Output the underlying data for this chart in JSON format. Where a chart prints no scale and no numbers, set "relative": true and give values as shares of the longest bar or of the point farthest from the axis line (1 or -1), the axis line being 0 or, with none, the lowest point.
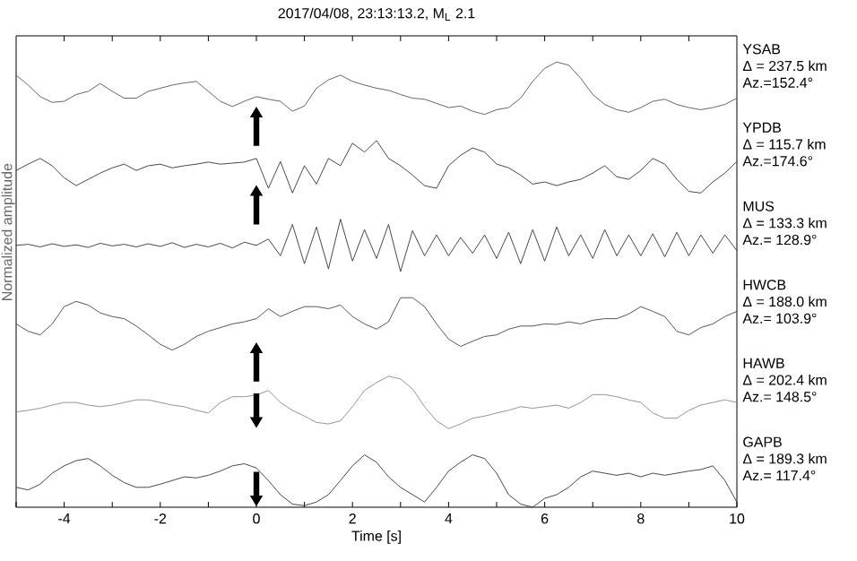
{
  "chart_data": [
    {
      "type": "line",
      "relative": true,
      "title": "2017/04/08, 23:13:13.2, M$_{L}$ 2.1",
      "xlim": [
        -5,
        10
      ],
      "tick_labels": false,
      "xticks": [
        {
          "value": -4,
          "label": null
        },
        {
          "value": -3,
          "label": null
        },
        {
          "value": -2,
          "label": null
        },
        {
          "value": -1,
          "label": null
        },
        {
          "value": 0,
          "label": null
        },
        {
          "value": 1,
          "label": null
        },
        {
          "value": 2,
          "label": null
        },
        {
          "value": 3,
          "label": null
        },
        {
          "value": 4,
          "label": null
        },
        {
          "value": 5,
          "label": null
        },
        {
          "value": 6,
          "label": null
        },
        {
          "value": 7,
          "label": null
        },
        {
          "value": 8,
          "label": null
        },
        {
          "value": 9,
          "label": null
        }
      ],
      "x": [
        -5,
        -4.75,
        -4.5,
        -4.25,
        -4,
        -3.75,
        -3.5,
        -3.25,
        -3,
        -2.75,
        -2.5,
        -2.25,
        -2,
        -1.75,
        -1.5,
        -1.25,
        -1,
        -0.75,
        -0.5,
        -0.25,
        0,
        0.25,
        0.5,
        0.75,
        1,
        1.25,
        1.5,
        1.75,
        2,
        2.25,
        2.5,
        2.75,
        3,
        3.25,
        3.5,
        3.75,
        4,
        4.25,
        4.5,
        4.75,
        5,
        5.25,
        5.5,
        5.75,
        6,
        6.25,
        6.5,
        6.75,
        7,
        7.25,
        7.5,
        7.75,
        8,
        8.25,
        8.5,
        8.75,
        9,
        9.25,
        9.5,
        9.75,
        10
      ],
      "series": [
        {
          "name": "YSAB",
          "color": "#555555",
          "values": [
            0.75,
            0.56,
            0.34,
            0.23,
            0.25,
            0.38,
            0.44,
            0.59,
            0.44,
            0.31,
            0.31,
            0.44,
            0.5,
            0.56,
            0.6,
            0.63,
            0.44,
            0.25,
            0.15,
            0.25,
            0.34,
            0.29,
            0.25,
            0.06,
            0.16,
            0.5,
            0.66,
            0.75,
            0.63,
            0.56,
            0.5,
            0.46,
            0.38,
            0.31,
            0.29,
            0.21,
            0.13,
            0.16,
            0.06,
            0,
            0.09,
            0.13,
            0.31,
            0.63,
            0.88,
            1,
            0.94,
            0.69,
            0.38,
            0.19,
            0.09,
            0.04,
            0.13,
            0.25,
            0.29,
            0.19,
            0.13,
            0.09,
            0.13,
            0.19,
            0.31
          ]
        }
      ],
      "annotations": [
        "Δ = 237.5 km",
        "Az.=152.4°"
      ]
    },
    {
      "type": "line",
      "relative": true,
      "xlim": [
        -5,
        10
      ],
      "tick_labels": false,
      "x": [
        -5,
        -4.75,
        -4.5,
        -4.25,
        -4,
        -3.75,
        -3.5,
        -3.25,
        -3,
        -2.75,
        -2.5,
        -2.25,
        -2,
        -1.75,
        -1.5,
        -1.25,
        -1,
        -0.75,
        -0.5,
        -0.25,
        0,
        0.25,
        0.5,
        0.75,
        1,
        1.25,
        1.5,
        1.75,
        2,
        2.25,
        2.5,
        2.75,
        3,
        3.25,
        3.5,
        3.75,
        4,
        4.25,
        4.5,
        4.75,
        5,
        5.25,
        5.5,
        5.75,
        6,
        6.25,
        6.5,
        6.75,
        7,
        7.25,
        7.5,
        7.75,
        8,
        8.25,
        8.5,
        8.75,
        9,
        9.25,
        9.5,
        9.75,
        10
      ],
      "series": [
        {
          "name": "YPDB",
          "color": "#333333",
          "values": [
            0.43,
            0.55,
            0.66,
            0.52,
            0.29,
            0.14,
            0.26,
            0.38,
            0.48,
            0.55,
            0.43,
            0.52,
            0.55,
            0.48,
            0.52,
            0.55,
            0.59,
            0.55,
            0.57,
            0.59,
            0.66,
            0.09,
            0.6,
            0,
            0.52,
            0.17,
            0.66,
            0.52,
            0.95,
            0.78,
            1,
            0.66,
            0.52,
            0.34,
            0.14,
            0.09,
            0.52,
            0.72,
            0.86,
            0.78,
            0.55,
            0.48,
            0.34,
            0.17,
            0.21,
            0.14,
            0.21,
            0.26,
            0.38,
            0.52,
            0.31,
            0.26,
            0.43,
            0.66,
            0.55,
            0.26,
            0.03,
            0,
            0.21,
            0.38,
            0.6
          ]
        }
      ],
      "annotations": [
        "Δ = 115.7 km",
        "Az.=174.6°"
      ]
    },
    {
      "type": "line",
      "relative": true,
      "xlim": [
        -5,
        10
      ],
      "tick_labels": false,
      "ylabel": "Normalized amplitude",
      "x": [
        -5,
        -4.75,
        -4.5,
        -4.25,
        -4,
        -3.75,
        -3.5,
        -3.25,
        -3,
        -2.75,
        -2.5,
        -2.25,
        -2,
        -1.75,
        -1.5,
        -1.25,
        -1,
        -0.75,
        -0.5,
        -0.25,
        0,
        0.25,
        0.5,
        0.75,
        1,
        1.25,
        1.5,
        1.75,
        2,
        2.25,
        2.5,
        2.75,
        3,
        3.25,
        3.5,
        3.75,
        4,
        4.25,
        4.5,
        4.75,
        5,
        5.25,
        5.5,
        5.75,
        6,
        6.25,
        6.5,
        6.75,
        7,
        7.25,
        7.5,
        7.75,
        8,
        8.25,
        8.5,
        8.75,
        9,
        9.25,
        9.5,
        9.75,
        10
      ],
      "series": [
        {
          "name": "MUS",
          "color": "#333333",
          "values": [
            0.5,
            0.52,
            0.47,
            0.53,
            0.48,
            0.51,
            0.46,
            0.54,
            0.49,
            0.52,
            0.47,
            0.53,
            0.48,
            0.55,
            0.46,
            0.52,
            0.47,
            0.54,
            0.45,
            0.56,
            0.5,
            0.62,
            0.3,
            0.9,
            0.15,
            0.85,
            0.05,
            1,
            0.2,
            0.8,
            0.25,
            0.9,
            0,
            0.78,
            0.3,
            0.7,
            0.3,
            0.65,
            0.35,
            0.7,
            0.25,
            0.75,
            0.15,
            0.8,
            0.2,
            0.85,
            0.3,
            0.7,
            0.25,
            0.8,
            0.3,
            0.7,
            0.3,
            0.72,
            0.28,
            0.75,
            0.3,
            0.7,
            0.35,
            0.7,
            0.4
          ]
        }
      ],
      "annotations": [
        "Δ = 133.3 km",
        "Az.= 128.9°"
      ]
    },
    {
      "type": "line",
      "relative": true,
      "xlim": [
        -5,
        10
      ],
      "tick_labels": false,
      "x": [
        -5,
        -4.75,
        -4.5,
        -4.25,
        -4,
        -3.75,
        -3.5,
        -3.25,
        -3,
        -2.75,
        -2.5,
        -2.25,
        -2,
        -1.75,
        -1.5,
        -1.25,
        -1,
        -0.75,
        -0.5,
        -0.25,
        0,
        0.25,
        0.5,
        0.75,
        1,
        1.25,
        1.5,
        1.75,
        2,
        2.25,
        2.5,
        2.75,
        3,
        3.25,
        3.5,
        3.75,
        4,
        4.25,
        4.5,
        4.75,
        5,
        5.25,
        5.5,
        5.75,
        6,
        6.25,
        6.5,
        6.75,
        7,
        7.25,
        7.5,
        7.75,
        8,
        8.25,
        8.5,
        8.75,
        9,
        9.25,
        9.5,
        9.75,
        10
      ],
      "series": [
        {
          "name": "HWCB",
          "color": "#444444",
          "values": [
            0.5,
            0.36,
            0.29,
            0.5,
            0.83,
            0.93,
            0.86,
            0.71,
            0.64,
            0.6,
            0.46,
            0.29,
            0.11,
            0,
            0.11,
            0.26,
            0.36,
            0.43,
            0.5,
            0.54,
            0.6,
            0.79,
            0.64,
            0.74,
            0.83,
            0.83,
            0.79,
            0.86,
            0.64,
            0.5,
            0.4,
            0.54,
            1,
            1,
            0.83,
            0.5,
            0.21,
            0.07,
            0.17,
            0.26,
            0.29,
            0.4,
            0.46,
            0.46,
            0.5,
            0.49,
            0.54,
            0.5,
            0.57,
            0.6,
            0.6,
            0.69,
            0.83,
            0.74,
            0.64,
            0.36,
            0.29,
            0.43,
            0.5,
            0.64,
            0.74
          ]
        }
      ],
      "annotations": [
        "Δ = 188.0 km",
        "Az.= 103.9°"
      ]
    },
    {
      "type": "line",
      "relative": true,
      "xlim": [
        -5,
        10
      ],
      "tick_labels": false,
      "x": [
        -5,
        -4.75,
        -4.5,
        -4.25,
        -4,
        -3.75,
        -3.5,
        -3.25,
        -3,
        -2.75,
        -2.5,
        -2.25,
        -2,
        -1.75,
        -1.5,
        -1.25,
        -1,
        -0.75,
        -0.5,
        -0.25,
        0,
        0.25,
        0.5,
        0.75,
        1,
        1.25,
        1.5,
        1.75,
        2,
        2.25,
        2.5,
        2.75,
        3,
        3.25,
        3.5,
        3.75,
        4,
        4.25,
        4.5,
        4.75,
        5,
        5.25,
        5.5,
        5.75,
        6,
        6.25,
        6.5,
        6.75,
        7,
        7.25,
        7.5,
        7.75,
        8,
        8.25,
        8.5,
        8.75,
        9,
        9.25,
        9.5,
        9.75,
        10
      ],
      "series": [
        {
          "name": "HAWB",
          "color": "#888888",
          "values": [
            0.32,
            0.35,
            0.39,
            0.45,
            0.5,
            0.5,
            0.45,
            0.42,
            0.45,
            0.5,
            0.55,
            0.55,
            0.5,
            0.45,
            0.42,
            0.35,
            0.3,
            0.5,
            0.61,
            0.61,
            0.64,
            0.73,
            0.5,
            0.35,
            0.24,
            0.12,
            0.09,
            0.15,
            0.42,
            0.73,
            0.88,
            1,
            0.95,
            0.76,
            0.42,
            0.15,
            0,
            0.09,
            0.2,
            0.24,
            0.3,
            0.35,
            0.42,
            0.39,
            0.42,
            0.45,
            0.39,
            0.5,
            0.65,
            0.65,
            0.61,
            0.55,
            0.5,
            0.3,
            0.2,
            0.2,
            0.35,
            0.45,
            0.5,
            0.55,
            0.5
          ]
        }
      ],
      "annotations": [
        "Δ = 202.4 km",
        "Az.= 148.5°"
      ]
    },
    {
      "type": "line",
      "relative": true,
      "xlim": [
        -5,
        10
      ],
      "tick_labels": "x",
      "xlabel": "Time [s]",
      "xticks": [
        {
          "value": -5,
          "label": null
        },
        -4,
        {
          "value": -3,
          "label": null
        },
        -2,
        {
          "value": -1,
          "label": null
        },
        0,
        {
          "value": 1,
          "label": null
        },
        2,
        {
          "value": 3,
          "label": null
        },
        4,
        {
          "value": 5,
          "label": null
        },
        6,
        {
          "value": 7,
          "label": null
        },
        8,
        {
          "value": 9,
          "label": null
        },
        10
      ],
      "x": [
        -5,
        -4.75,
        -4.5,
        -4.25,
        -4,
        -3.75,
        -3.5,
        -3.25,
        -3,
        -2.75,
        -2.5,
        -2.25,
        -2,
        -1.75,
        -1.5,
        -1.25,
        -1,
        -0.75,
        -0.5,
        -0.25,
        0,
        0.25,
        0.5,
        0.75,
        1,
        1.25,
        1.5,
        1.75,
        2,
        2.25,
        2.5,
        2.75,
        3,
        3.25,
        3.5,
        3.75,
        4,
        4.25,
        4.5,
        4.75,
        5,
        5.25,
        5.5,
        5.75,
        6,
        6.25,
        6.5,
        6.75,
        7,
        7.25,
        7.5,
        7.75,
        8,
        8.25,
        8.5,
        8.75,
        9,
        9.25,
        9.5,
        9.75,
        10
      ],
      "series": [
        {
          "name": "GAPB",
          "color": "#333333",
          "values": [
            0.38,
            0.33,
            0.44,
            0.65,
            0.79,
            0.89,
            0.93,
            0.79,
            0.61,
            0.47,
            0.38,
            0.38,
            0.44,
            0.51,
            0.58,
            0.56,
            0.61,
            0.69,
            0.79,
            0.83,
            0.75,
            0.51,
            0.24,
            0.06,
            0.03,
            0.1,
            0.24,
            0.51,
            0.79,
            1,
            0.86,
            0.58,
            0.38,
            0.24,
            0.1,
            0.38,
            0.69,
            0.86,
            1,
            0.93,
            0.65,
            0.24,
            0.06,
            0,
            0.17,
            0.24,
            0.38,
            0.58,
            0.69,
            0.65,
            0.61,
            0.65,
            0.58,
            0.65,
            0.61,
            0.65,
            0.69,
            0.72,
            0.79,
            0.51,
            0.1
          ]
        }
      ],
      "annotations": [
        "Δ = 189.3 km",
        "Az.= 117.4°"
      ]
    }
  ]
}
